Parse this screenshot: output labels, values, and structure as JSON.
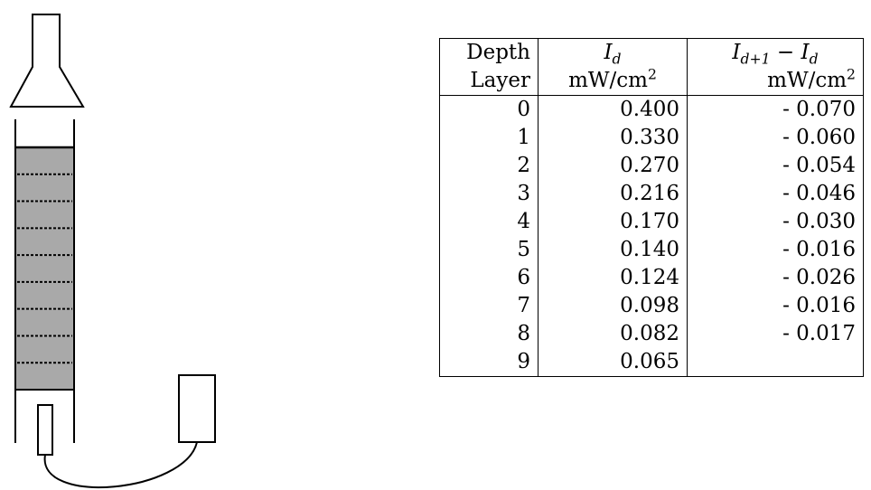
{
  "table": {
    "header": {
      "col0_line1": "Depth",
      "col0_line2": "Layer",
      "col1_symbol": "I",
      "col1_sub": "d",
      "col1_unit": "mW/cm",
      "col1_unit_exp": "2",
      "col2_symbol_a": "I",
      "col2_sub_a": "d+1",
      "col2_minus": " − ",
      "col2_symbol_b": "I",
      "col2_sub_b": "d",
      "col2_unit": "mW/cm",
      "col2_unit_exp": "2"
    },
    "rows": [
      {
        "layer": "0",
        "intensity": "0.400",
        "difference": "- 0.070"
      },
      {
        "layer": "1",
        "intensity": "0.330",
        "difference": "- 0.060"
      },
      {
        "layer": "2",
        "intensity": "0.270",
        "difference": "- 0.054"
      },
      {
        "layer": "3",
        "intensity": "0.216",
        "difference": "- 0.046"
      },
      {
        "layer": "4",
        "intensity": "0.170",
        "difference": "- 0.030"
      },
      {
        "layer": "5",
        "intensity": "0.140",
        "difference": "- 0.016"
      },
      {
        "layer": "6",
        "intensity": "0.124",
        "difference": "- 0.026"
      },
      {
        "layer": "7",
        "intensity": "0.098",
        "difference": "- 0.016"
      },
      {
        "layer": "8",
        "intensity": "0.082",
        "difference": "- 0.017"
      },
      {
        "layer": "9",
        "intensity": "0.065",
        "difference": ""
      }
    ]
  },
  "colors": {
    "sediment_fill": "#a9a9a9",
    "line": "#000000"
  }
}
